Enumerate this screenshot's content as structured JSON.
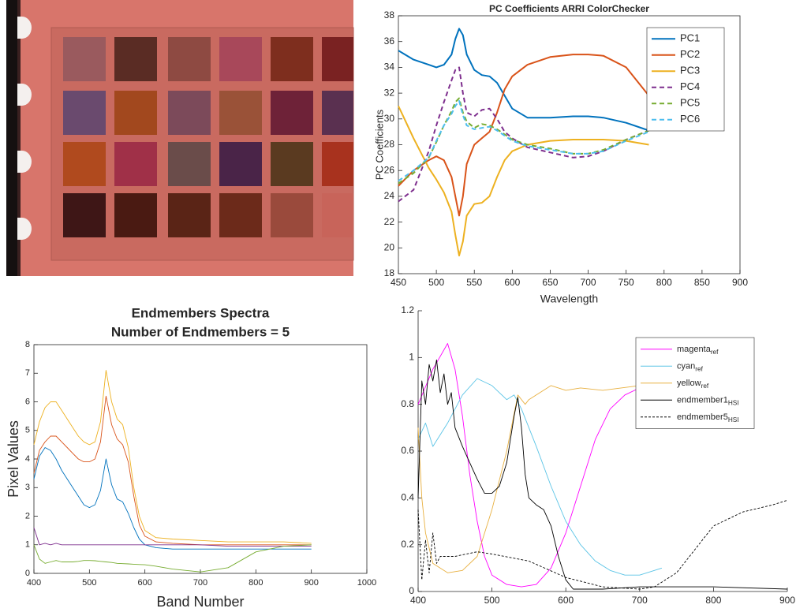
{
  "chart_data": [
    {
      "type": "line",
      "title": "PC Coefficients ARRI ColorChecker",
      "xlabel": "Wavelength",
      "ylabel": "PC Coefficients",
      "x": [
        450,
        470,
        490,
        500,
        510,
        520,
        525,
        530,
        535,
        540,
        550,
        560,
        570,
        580,
        590,
        600,
        620,
        650,
        680,
        700,
        720,
        750,
        780
      ],
      "xlim": [
        450,
        900
      ],
      "xticks": [
        450,
        500,
        550,
        600,
        650,
        700,
        750,
        800,
        850,
        900
      ],
      "ylim": [
        18,
        38
      ],
      "yticks": [
        18,
        20,
        22,
        24,
        26,
        28,
        30,
        32,
        34,
        36,
        38
      ],
      "legend": "upper right",
      "box": true,
      "series": [
        {
          "name": "PC1",
          "color": "#0072bd",
          "dash": false,
          "values": [
            35.3,
            34.6,
            34.2,
            34.0,
            34.2,
            35.0,
            36.2,
            37.0,
            36.5,
            35.0,
            33.8,
            33.4,
            33.3,
            32.8,
            31.8,
            30.8,
            30.1,
            30.1,
            30.2,
            30.2,
            30.1,
            29.7,
            29.1
          ]
        },
        {
          "name": "PC2",
          "color": "#d95319",
          "dash": false,
          "values": [
            24.8,
            26.0,
            26.8,
            27.1,
            26.8,
            25.5,
            24.0,
            22.5,
            24.0,
            26.5,
            28.0,
            28.5,
            29.0,
            30.5,
            32.3,
            33.3,
            34.2,
            34.8,
            35.0,
            35.0,
            34.9,
            34.0,
            31.8
          ]
        },
        {
          "name": "PC3",
          "color": "#edb120",
          "dash": false,
          "values": [
            31.0,
            28.5,
            26.2,
            25.3,
            24.3,
            22.8,
            21.0,
            19.4,
            20.5,
            22.5,
            23.4,
            23.5,
            24.0,
            25.5,
            26.8,
            27.5,
            28.0,
            28.3,
            28.4,
            28.4,
            28.4,
            28.3,
            28.0
          ]
        },
        {
          "name": "PC4",
          "color": "#7e2f8e",
          "dash": true,
          "values": [
            23.6,
            24.5,
            27.5,
            29.5,
            31.3,
            33.0,
            33.8,
            34.0,
            32.0,
            30.5,
            30.2,
            30.7,
            30.8,
            30.0,
            29.0,
            28.5,
            27.8,
            27.4,
            27.0,
            27.1,
            27.5,
            28.4,
            29.1
          ]
        },
        {
          "name": "PC5",
          "color": "#77ac30",
          "dash": true,
          "values": [
            25.0,
            25.8,
            27.0,
            28.2,
            29.5,
            30.6,
            31.3,
            31.6,
            30.5,
            29.8,
            29.3,
            29.6,
            29.5,
            29.2,
            28.8,
            28.4,
            28.0,
            27.7,
            27.3,
            27.3,
            27.6,
            28.4,
            29.1
          ]
        },
        {
          "name": "PC6",
          "color": "#4dbeee",
          "dash": true,
          "values": [
            25.2,
            26.0,
            27.0,
            28.3,
            29.5,
            30.4,
            31.0,
            31.4,
            30.3,
            29.5,
            29.2,
            29.3,
            29.4,
            29.1,
            28.7,
            28.3,
            27.9,
            27.6,
            27.3,
            27.3,
            27.5,
            28.3,
            29.0
          ]
        }
      ]
    },
    {
      "type": "line",
      "title": [
        "Endmembers Spectra",
        "Number of Endmembers = 5"
      ],
      "xlabel": "Band Number",
      "ylabel": "Pixel Values",
      "x": [
        400,
        410,
        420,
        430,
        440,
        450,
        460,
        470,
        480,
        490,
        500,
        510,
        520,
        530,
        540,
        550,
        560,
        570,
        580,
        590,
        600,
        620,
        650,
        700,
        750,
        800,
        850,
        900
      ],
      "xlim": [
        400,
        1000
      ],
      "xticks": [
        400,
        500,
        600,
        700,
        800,
        900,
        1000
      ],
      "ylim": [
        0,
        8
      ],
      "yticks": [
        0,
        1,
        2,
        3,
        4,
        5,
        6,
        7,
        8
      ],
      "box": true,
      "series": [
        {
          "color": "#edb120",
          "dash": false,
          "values": [
            4.5,
            5.3,
            5.8,
            6.0,
            6.0,
            5.7,
            5.4,
            5.1,
            4.8,
            4.6,
            4.5,
            4.6,
            5.3,
            7.1,
            6.0,
            5.4,
            5.2,
            4.4,
            3.0,
            2.0,
            1.5,
            1.25,
            1.2,
            1.15,
            1.1,
            1.1,
            1.1,
            1.05
          ]
        },
        {
          "color": "#d95319",
          "dash": false,
          "values": [
            3.5,
            4.3,
            4.6,
            4.8,
            4.8,
            4.6,
            4.4,
            4.2,
            4.0,
            3.9,
            3.9,
            4.0,
            4.6,
            6.2,
            5.2,
            4.7,
            4.5,
            3.9,
            2.7,
            1.7,
            1.3,
            1.1,
            1.05,
            1.0,
            1.0,
            1.0,
            1.0,
            1.0
          ]
        },
        {
          "color": "#0072bd",
          "dash": false,
          "values": [
            3.3,
            4.1,
            4.4,
            4.3,
            4.0,
            3.6,
            3.3,
            3.0,
            2.7,
            2.4,
            2.3,
            2.4,
            2.9,
            4.0,
            3.1,
            2.6,
            2.5,
            2.1,
            1.6,
            1.2,
            1.0,
            0.9,
            0.85,
            0.85,
            0.85,
            0.85,
            0.85,
            0.85
          ]
        },
        {
          "color": "#7e2f8e",
          "dash": false,
          "values": [
            1.6,
            1.0,
            1.05,
            1.0,
            1.05,
            1.0,
            1.0,
            1.0,
            1.0,
            1.0,
            1.0,
            1.0,
            1.0,
            1.0,
            1.0,
            1.0,
            1.0,
            1.0,
            1.0,
            1.0,
            1.0,
            1.0,
            1.0,
            1.0,
            0.95,
            0.95,
            0.95,
            0.95
          ]
        },
        {
          "color": "#77ac30",
          "dash": false,
          "values": [
            1.0,
            0.5,
            0.35,
            0.4,
            0.45,
            0.4,
            0.4,
            0.4,
            0.42,
            0.45,
            0.45,
            0.44,
            0.42,
            0.4,
            0.38,
            0.35,
            0.34,
            0.33,
            0.32,
            0.31,
            0.3,
            0.25,
            0.15,
            0.05,
            0.2,
            0.75,
            0.95,
            1.0
          ]
        }
      ]
    },
    {
      "type": "line",
      "xlim": [
        400,
        900
      ],
      "xticks": [
        400,
        500,
        600,
        700,
        800,
        900
      ],
      "ylim": [
        0,
        1.2
      ],
      "yticks": [
        0,
        0.2,
        0.4,
        0.6,
        0.8,
        1,
        1.2
      ],
      "legend": "upper right",
      "box": false,
      "series": [
        {
          "name": "magenta",
          "name_sub": "ref",
          "color": "#ff00ff",
          "dash": false,
          "x": [
            400,
            420,
            440,
            450,
            460,
            470,
            480,
            490,
            500,
            520,
            540,
            560,
            580,
            600,
            620,
            640,
            660,
            680,
            700,
            720,
            740
          ],
          "values": [
            0.8,
            0.95,
            1.06,
            0.95,
            0.75,
            0.5,
            0.3,
            0.15,
            0.07,
            0.03,
            0.02,
            0.03,
            0.1,
            0.25,
            0.45,
            0.65,
            0.78,
            0.84,
            0.87,
            0.88,
            0.89
          ]
        },
        {
          "name": "cyan",
          "name_sub": "ref",
          "color": "#5bc4e6",
          "dash": false,
          "x": [
            400,
            410,
            420,
            440,
            460,
            480,
            500,
            520,
            530,
            540,
            560,
            580,
            600,
            620,
            640,
            660,
            680,
            700,
            720,
            730
          ],
          "values": [
            0.65,
            0.72,
            0.62,
            0.72,
            0.84,
            0.91,
            0.88,
            0.82,
            0.84,
            0.78,
            0.62,
            0.45,
            0.3,
            0.2,
            0.13,
            0.09,
            0.07,
            0.07,
            0.09,
            0.1
          ]
        },
        {
          "name": "yellow",
          "name_sub": "ref",
          "color": "#e8b040",
          "dash": false,
          "x": [
            400,
            405,
            410,
            420,
            440,
            460,
            480,
            500,
            520,
            535,
            545,
            550,
            560,
            580,
            600,
            620,
            650,
            700,
            740
          ],
          "values": [
            0.7,
            0.4,
            0.25,
            0.12,
            0.08,
            0.09,
            0.15,
            0.35,
            0.6,
            0.84,
            0.8,
            0.82,
            0.84,
            0.88,
            0.86,
            0.87,
            0.86,
            0.88,
            0.89
          ]
        },
        {
          "name": "endmember1",
          "name_sub": "HSI",
          "color": "#000000",
          "dash": false,
          "x": [
            400,
            405,
            410,
            415,
            420,
            425,
            430,
            435,
            440,
            445,
            450,
            460,
            470,
            480,
            490,
            500,
            510,
            520,
            530,
            535,
            540,
            545,
            550,
            560,
            570,
            580,
            590,
            600,
            610,
            650,
            700,
            800,
            900
          ],
          "values": [
            0.4,
            0.9,
            0.8,
            0.97,
            0.9,
            0.99,
            0.85,
            0.93,
            0.8,
            0.85,
            0.7,
            0.62,
            0.55,
            0.48,
            0.42,
            0.42,
            0.45,
            0.55,
            0.75,
            0.83,
            0.7,
            0.5,
            0.4,
            0.37,
            0.35,
            0.28,
            0.15,
            0.05,
            0.01,
            0.01,
            0.02,
            0.02,
            0.01
          ]
        },
        {
          "name": "endmember5",
          "name_sub": "HSI",
          "color": "#000000",
          "dash": true,
          "x": [
            400,
            405,
            410,
            415,
            420,
            425,
            430,
            450,
            480,
            500,
            550,
            600,
            650,
            700,
            720,
            750,
            780,
            800,
            840,
            880,
            900
          ],
          "values": [
            0.35,
            0.05,
            0.22,
            0.08,
            0.25,
            0.12,
            0.15,
            0.15,
            0.17,
            0.16,
            0.13,
            0.06,
            0.02,
            0.01,
            0.02,
            0.08,
            0.2,
            0.28,
            0.34,
            0.37,
            0.39
          ]
        }
      ]
    }
  ]
}
